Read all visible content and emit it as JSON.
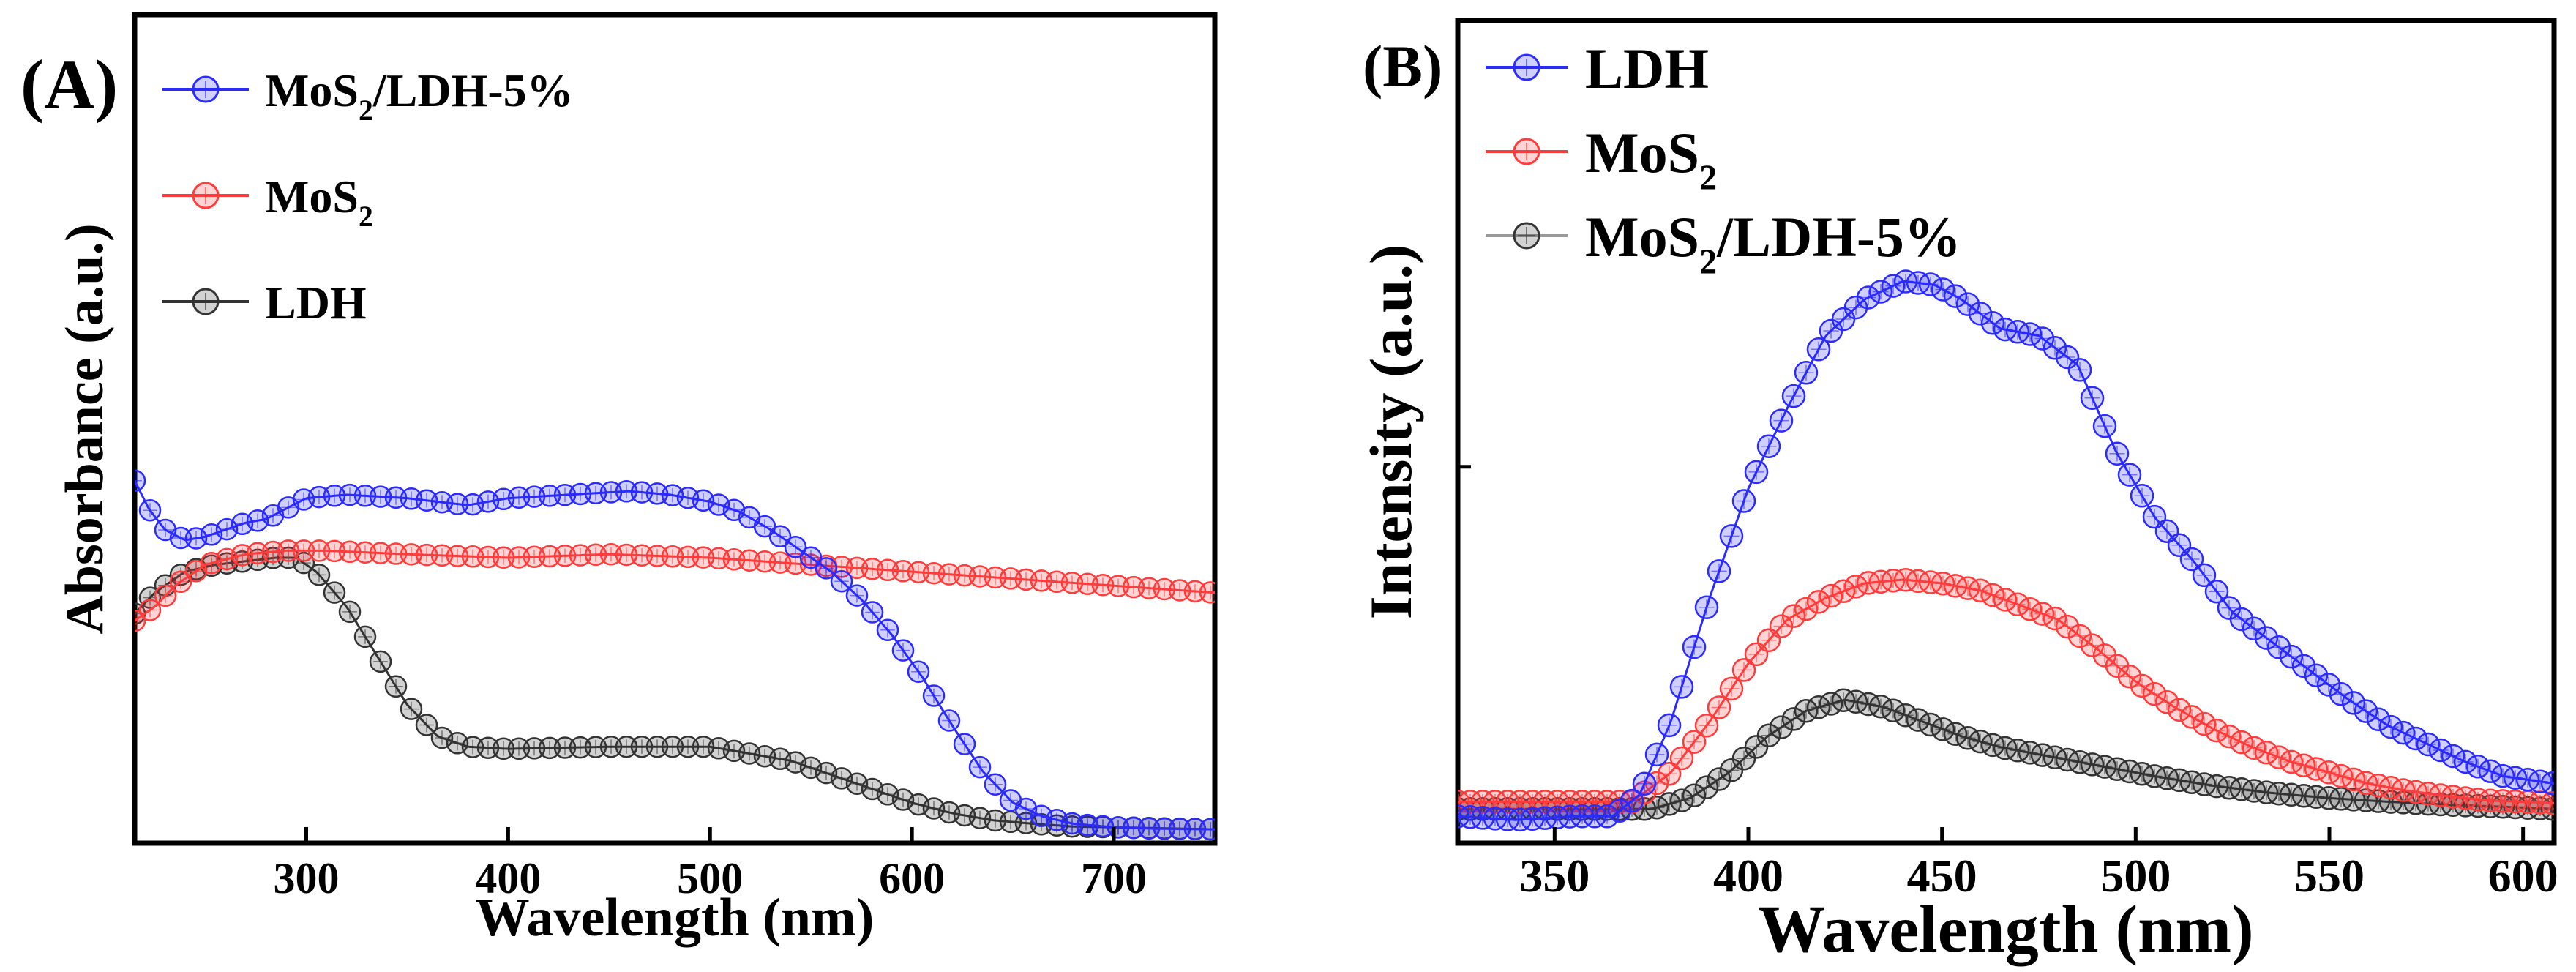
{
  "colors": {
    "blue": "#2b2bff",
    "red": "#ff3b3b",
    "black": "#333333",
    "grey": "#9a9a9a"
  },
  "chart_data": [
    {
      "type": "line",
      "panel_label": "(A)",
      "title": "",
      "xlabel": "Wavelength (nm)",
      "ylabel": "Absorbance (a.u.)",
      "xlim": [
        215,
        750
      ],
      "ylim": [
        0,
        1
      ],
      "xticks": [
        300,
        400,
        500,
        600,
        700
      ],
      "yticks_shown": false,
      "legend_position": "top-left",
      "legend_order": [
        "MoS2/LDH-5%",
        "MoS2",
        "LDH"
      ],
      "legend_labels": [
        {
          "main": "MoS",
          "sub": "2",
          "rest": "/LDH-5%"
        },
        {
          "main": "MoS",
          "sub": "2",
          "rest": ""
        },
        {
          "main": "LDH",
          "sub": "",
          "rest": ""
        }
      ],
      "series": [
        {
          "name": "MoS2/LDH-5%",
          "color_key": "blue",
          "points": [
            [
              215,
              0.5
            ],
            [
              222,
              0.46
            ],
            [
              230,
              0.43
            ],
            [
              240,
              0.415
            ],
            [
              250,
              0.42
            ],
            [
              260,
              0.43
            ],
            [
              270,
              0.44
            ],
            [
              280,
              0.445
            ],
            [
              290,
              0.46
            ],
            [
              300,
              0.475
            ],
            [
              320,
              0.48
            ],
            [
              350,
              0.475
            ],
            [
              380,
              0.465
            ],
            [
              400,
              0.475
            ],
            [
              430,
              0.48
            ],
            [
              460,
              0.485
            ],
            [
              480,
              0.48
            ],
            [
              500,
              0.47
            ],
            [
              515,
              0.455
            ],
            [
              530,
              0.43
            ],
            [
              545,
              0.4
            ],
            [
              560,
              0.37
            ],
            [
              575,
              0.33
            ],
            [
              590,
              0.28
            ],
            [
              605,
              0.22
            ],
            [
              620,
              0.15
            ],
            [
              635,
              0.085
            ],
            [
              650,
              0.04
            ],
            [
              665,
              0.02
            ],
            [
              680,
              0.01
            ],
            [
              700,
              0.005
            ],
            [
              720,
              0.003
            ],
            [
              750,
              0.002
            ]
          ]
        },
        {
          "name": "MoS2",
          "color_key": "red",
          "points": [
            [
              215,
              0.3
            ],
            [
              225,
              0.32
            ],
            [
              235,
              0.35
            ],
            [
              250,
              0.38
            ],
            [
              270,
              0.395
            ],
            [
              290,
              0.4
            ],
            [
              310,
              0.4
            ],
            [
              350,
              0.395
            ],
            [
              400,
              0.39
            ],
            [
              450,
              0.395
            ],
            [
              500,
              0.39
            ],
            [
              550,
              0.38
            ],
            [
              600,
              0.37
            ],
            [
              650,
              0.36
            ],
            [
              700,
              0.35
            ],
            [
              750,
              0.34
            ]
          ]
        },
        {
          "name": "LDH",
          "color_key": "black",
          "points": [
            [
              215,
              0.31
            ],
            [
              225,
              0.34
            ],
            [
              240,
              0.37
            ],
            [
              255,
              0.38
            ],
            [
              270,
              0.385
            ],
            [
              285,
              0.39
            ],
            [
              295,
              0.39
            ],
            [
              305,
              0.37
            ],
            [
              320,
              0.32
            ],
            [
              335,
              0.25
            ],
            [
              350,
              0.18
            ],
            [
              365,
              0.135
            ],
            [
              380,
              0.12
            ],
            [
              400,
              0.117
            ],
            [
              450,
              0.12
            ],
            [
              500,
              0.12
            ],
            [
              520,
              0.11
            ],
            [
              540,
              0.1
            ],
            [
              560,
              0.08
            ],
            [
              580,
              0.06
            ],
            [
              600,
              0.04
            ],
            [
              620,
              0.025
            ],
            [
              640,
              0.015
            ],
            [
              660,
              0.01
            ],
            [
              680,
              0.006
            ],
            [
              700,
              0.005
            ],
            [
              750,
              0.002
            ]
          ]
        }
      ]
    },
    {
      "type": "line",
      "panel_label": "(B)",
      "title": "",
      "xlabel": "Wavelength (nm)",
      "ylabel": "Intensity (a.u.)",
      "xlim": [
        325,
        608
      ],
      "ylim": [
        0,
        1
      ],
      "xticks": [
        350,
        400,
        450,
        500,
        550,
        600
      ],
      "yticks_shown": false,
      "legend_position": "top-left",
      "legend_order": [
        "LDH",
        "MoS2",
        "MoS2/LDH-5%"
      ],
      "legend_labels": [
        {
          "main": "LDH",
          "sub": "",
          "rest": ""
        },
        {
          "main": "MoS",
          "sub": "2",
          "rest": ""
        },
        {
          "main": "MoS",
          "sub": "2",
          "rest": "/LDH-5%"
        }
      ],
      "series": [
        {
          "name": "LDH",
          "color_key": "blue",
          "points": [
            [
              325,
              0.02
            ],
            [
              340,
              0.015
            ],
            [
              355,
              0.02
            ],
            [
              365,
              0.02
            ],
            [
              372,
              0.05
            ],
            [
              380,
              0.15
            ],
            [
              390,
              0.32
            ],
            [
              400,
              0.47
            ],
            [
              410,
              0.58
            ],
            [
              420,
              0.68
            ],
            [
              430,
              0.73
            ],
            [
              440,
              0.755
            ],
            [
              448,
              0.75
            ],
            [
              455,
              0.73
            ],
            [
              465,
              0.69
            ],
            [
              475,
              0.68
            ],
            [
              485,
              0.64
            ],
            [
              495,
              0.52
            ],
            [
              505,
              0.43
            ],
            [
              515,
              0.37
            ],
            [
              525,
              0.3
            ],
            [
              535,
              0.26
            ],
            [
              545,
              0.22
            ],
            [
              555,
              0.18
            ],
            [
              565,
              0.145
            ],
            [
              575,
              0.12
            ],
            [
              585,
              0.095
            ],
            [
              595,
              0.075
            ],
            [
              608,
              0.065
            ]
          ]
        },
        {
          "name": "MoS2",
          "color_key": "red",
          "points": [
            [
              325,
              0.04
            ],
            [
              340,
              0.04
            ],
            [
              360,
              0.04
            ],
            [
              370,
              0.04
            ],
            [
              380,
              0.08
            ],
            [
              390,
              0.15
            ],
            [
              400,
              0.23
            ],
            [
              410,
              0.29
            ],
            [
              420,
              0.32
            ],
            [
              430,
              0.34
            ],
            [
              440,
              0.345
            ],
            [
              450,
              0.34
            ],
            [
              460,
              0.33
            ],
            [
              470,
              0.31
            ],
            [
              480,
              0.29
            ],
            [
              490,
              0.25
            ],
            [
              500,
              0.205
            ],
            [
              510,
              0.17
            ],
            [
              520,
              0.14
            ],
            [
              530,
              0.115
            ],
            [
              540,
              0.095
            ],
            [
              550,
              0.08
            ],
            [
              560,
              0.065
            ],
            [
              570,
              0.055
            ],
            [
              580,
              0.048
            ],
            [
              590,
              0.042
            ],
            [
              608,
              0.038
            ]
          ]
        },
        {
          "name": "MoS2/LDH-5%",
          "color_key": "black",
          "points": [
            [
              325,
              0.03
            ],
            [
              340,
              0.03
            ],
            [
              360,
              0.03
            ],
            [
              375,
              0.03
            ],
            [
              385,
              0.045
            ],
            [
              395,
              0.08
            ],
            [
              405,
              0.13
            ],
            [
              415,
              0.165
            ],
            [
              425,
              0.18
            ],
            [
              435,
              0.17
            ],
            [
              445,
              0.15
            ],
            [
              455,
              0.13
            ],
            [
              465,
              0.115
            ],
            [
              475,
              0.105
            ],
            [
              485,
              0.095
            ],
            [
              495,
              0.085
            ],
            [
              505,
              0.075
            ],
            [
              520,
              0.062
            ],
            [
              535,
              0.052
            ],
            [
              550,
              0.045
            ],
            [
              565,
              0.04
            ],
            [
              580,
              0.036
            ],
            [
              595,
              0.033
            ],
            [
              608,
              0.03
            ]
          ]
        }
      ]
    }
  ]
}
